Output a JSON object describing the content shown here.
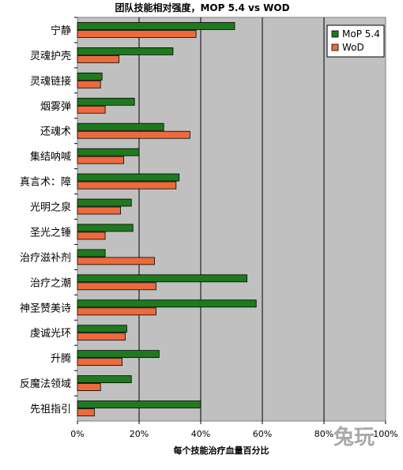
{
  "chart_data": {
    "type": "bar",
    "orientation": "horizontal",
    "title": "团队技能相对强度，MOP 5.4 vs WOD",
    "xlabel": "每个技能治疗血量百分比",
    "ylabel": "",
    "xlim": [
      0,
      100
    ],
    "xticks": [
      "0%",
      "20%",
      "40%",
      "60%",
      "80%",
      "100%"
    ],
    "grid": true,
    "legend_position": "top-right",
    "categories": [
      "宁静",
      "灵魂护壳",
      "灵魂链接",
      "烟雾弹",
      "还魂术",
      "集结呐喊",
      "真言术：障",
      "光明之泉",
      "圣光之锤",
      "治疗滋补剂",
      "治疗之潮",
      "神圣赞美诗",
      "虔诚光环",
      "升腾",
      "反魔法领域",
      "先祖指引"
    ],
    "series": [
      {
        "name": "MoP 5.4",
        "color": "#1f7a1f",
        "values": [
          51,
          31,
          8,
          18.5,
          28,
          20,
          33,
          17.5,
          18,
          9,
          55,
          58,
          16,
          26.5,
          17.5,
          40
        ]
      },
      {
        "name": "WoD",
        "color": "#ee6a3c",
        "values": [
          38.5,
          13.5,
          7.5,
          9,
          36.5,
          15,
          32,
          14,
          9,
          25,
          25.5,
          25.5,
          15.5,
          14.5,
          7.5,
          5.5
        ]
      }
    ],
    "plot_background": "#c0c0c0",
    "watermark": "兔玩"
  }
}
